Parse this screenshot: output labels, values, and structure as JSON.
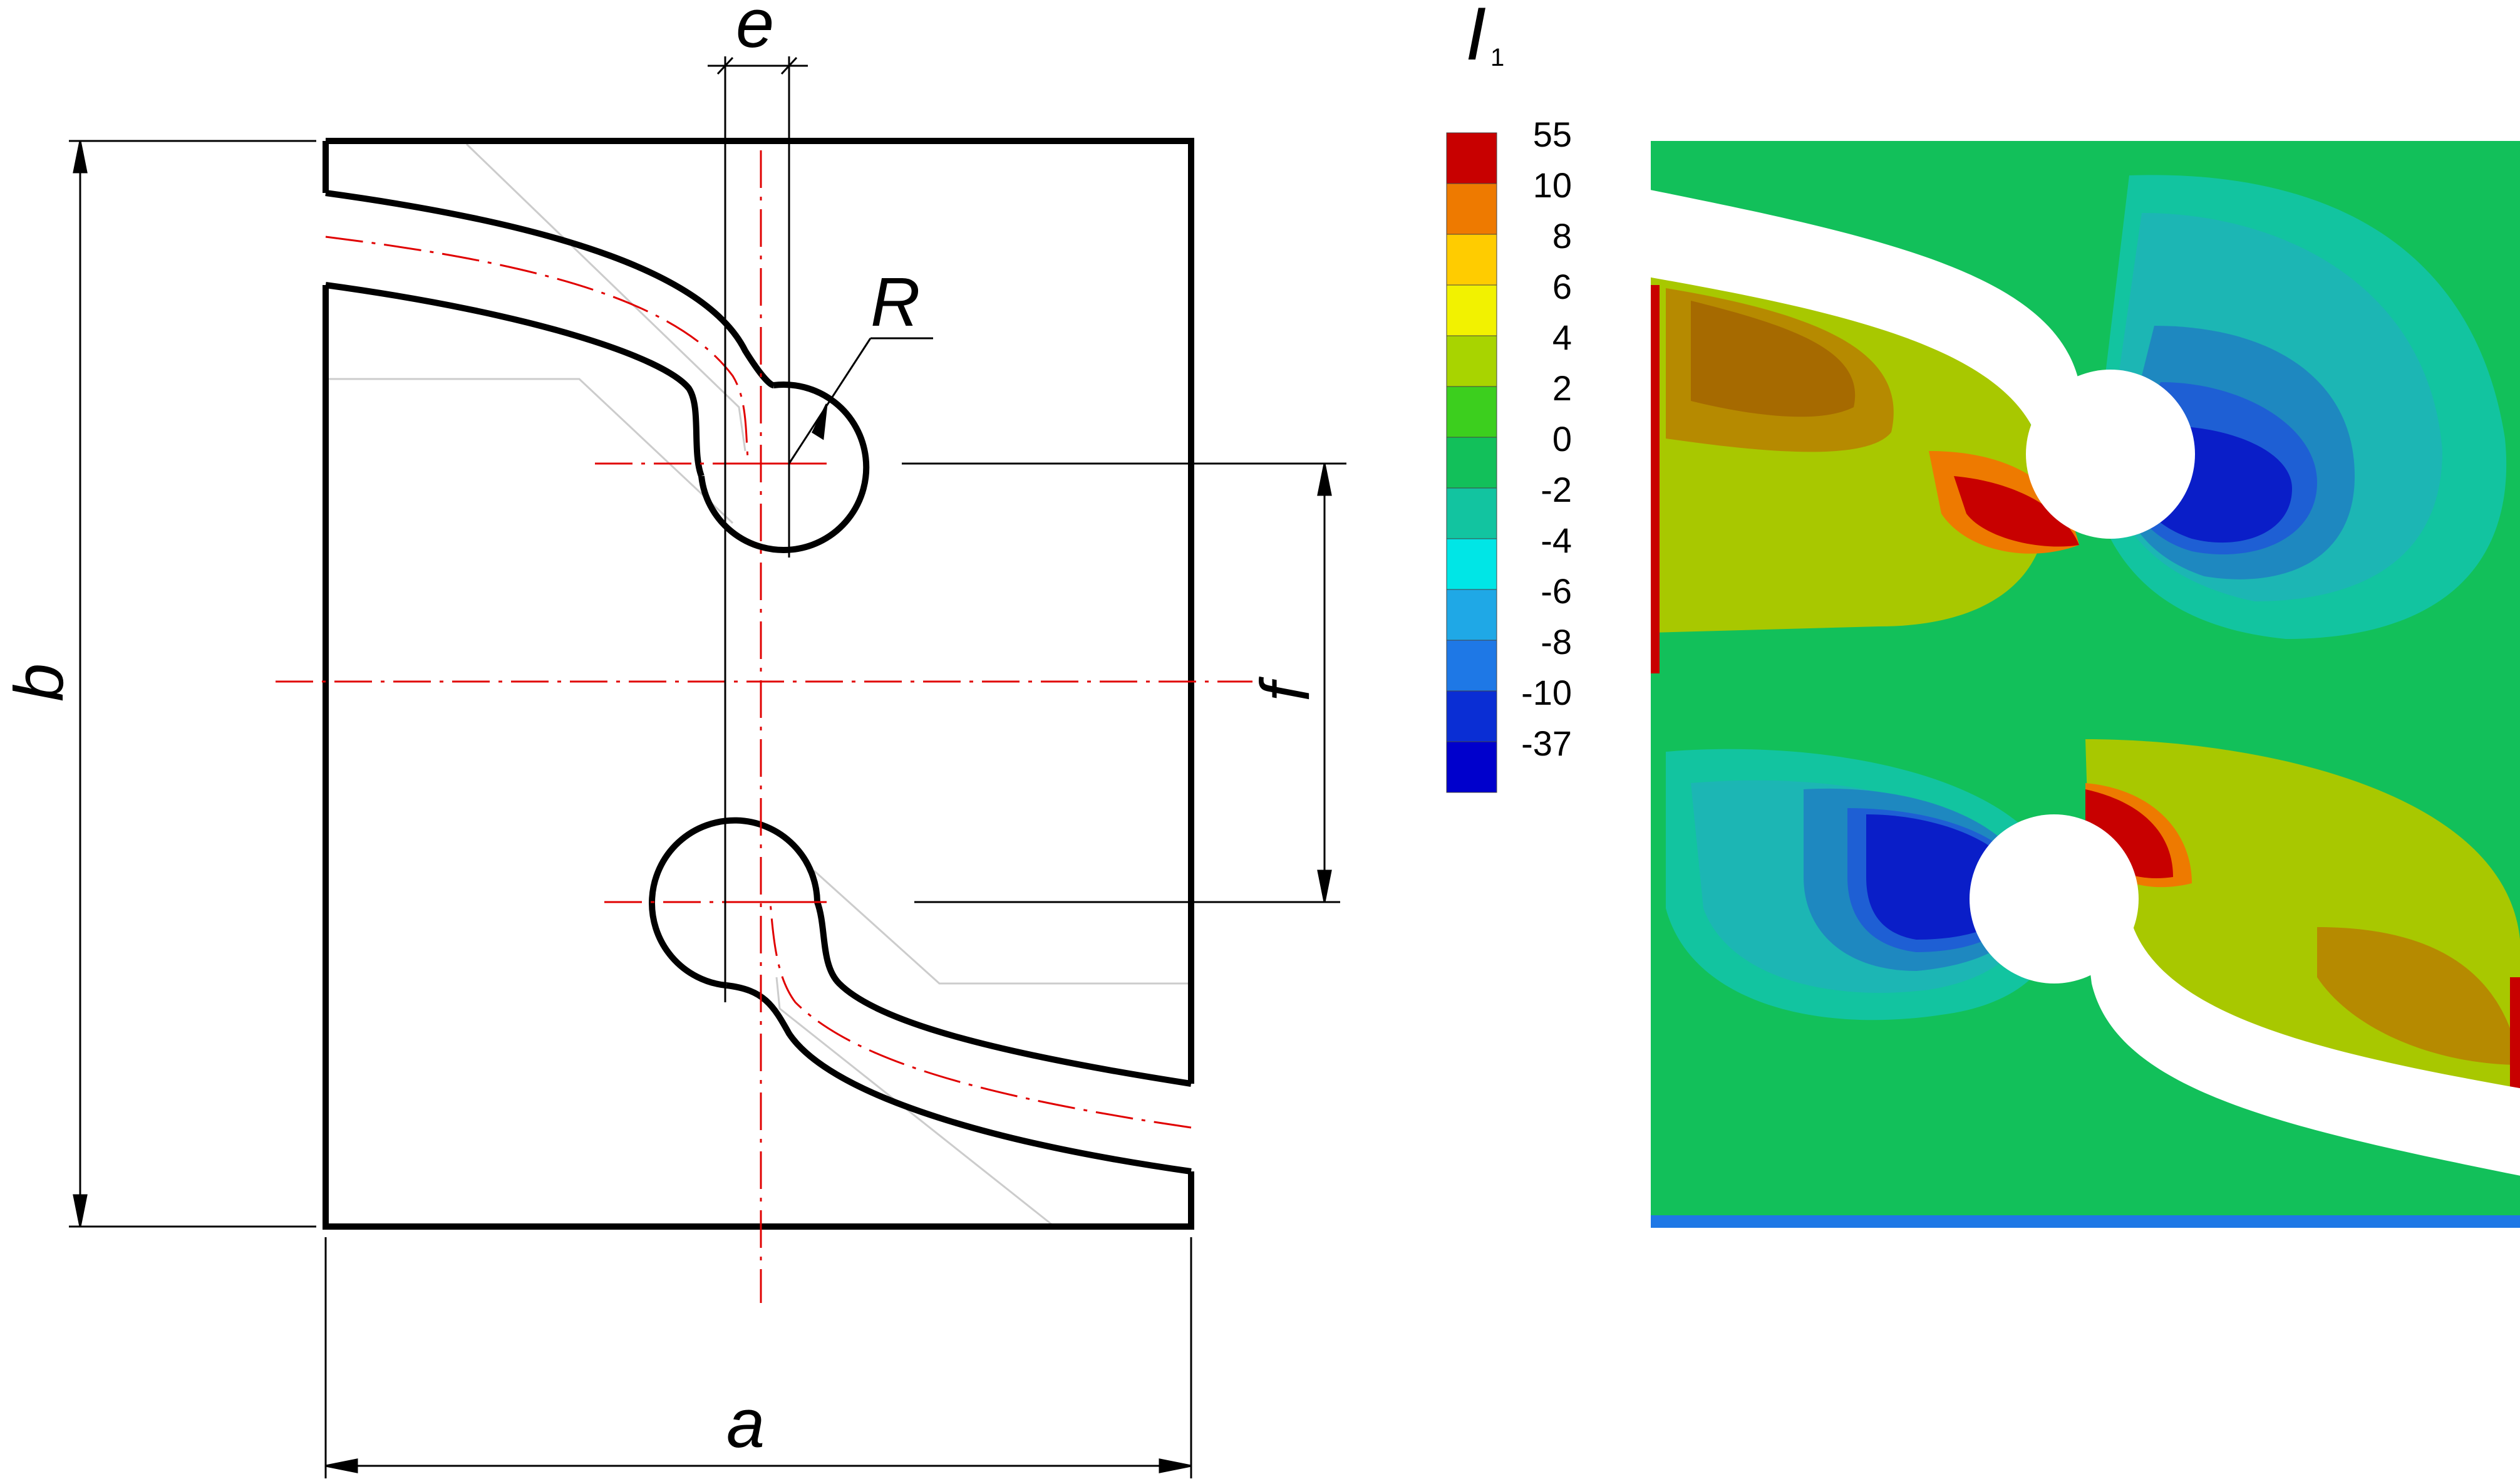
{
  "drawing": {
    "labels": {
      "a": "a",
      "b": "b",
      "e": "e",
      "f": "f",
      "R": "R"
    }
  },
  "contour": {
    "title": "I",
    "title_subscript": "1",
    "legend": {
      "values": [
        "55",
        "10",
        "8",
        "6",
        "4",
        "2",
        "0",
        "-2",
        "-4",
        "-6",
        "-8",
        "-10",
        "-37"
      ],
      "colors": [
        "#c80000",
        "#ee7a00",
        "#ffcc00",
        "#f2f200",
        "#a8d400",
        "#3ccf1e",
        "#12c05a",
        "#12c4a0",
        "#00e6e6",
        "#1fa8e6",
        "#1e78e6",
        "#0a2ed4",
        "#0000cc"
      ]
    }
  }
}
